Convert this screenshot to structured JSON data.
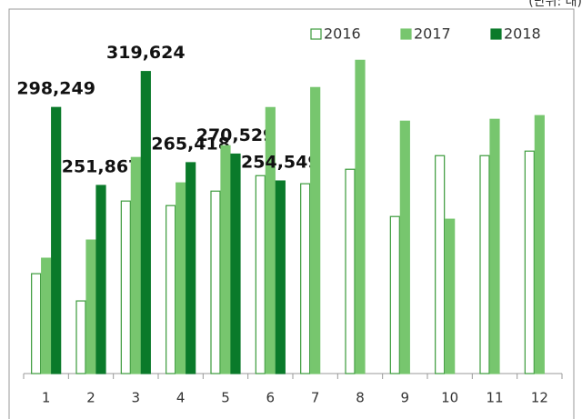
{
  "chart_data": {
    "type": "bar",
    "unit_note": "(단위: 대)",
    "categories": [
      "1",
      "2",
      "3",
      "4",
      "5",
      "6",
      "7",
      "8",
      "9",
      "10",
      "11",
      "12"
    ],
    "series": [
      {
        "name": "2016",
        "color": "#ffffff",
        "stroke": "#3a9a3a",
        "values": [
          199400,
          183200,
          242600,
          239900,
          248500,
          257700,
          252900,
          261500,
          233400,
          269600,
          269600,
          272300
        ]
      },
      {
        "name": "2017",
        "color": "#77c66e",
        "values": [
          208600,
          219400,
          268500,
          253400,
          275500,
          298200,
          310100,
          326300,
          290100,
          231800,
          291200,
          293400
        ]
      },
      {
        "name": "2018",
        "color": "#0a7a2a",
        "values": [
          298249,
          251867,
          319624,
          265418,
          270529,
          254549,
          null,
          null,
          null,
          null,
          null,
          null
        ],
        "value_labels": [
          "298,249",
          "251,867",
          "319,624",
          "265,418",
          "270,529",
          "254,549",
          null,
          null,
          null,
          null,
          null,
          null
        ]
      }
    ],
    "ylim": [
      140000,
      360000
    ],
    "legend": "top-right"
  }
}
